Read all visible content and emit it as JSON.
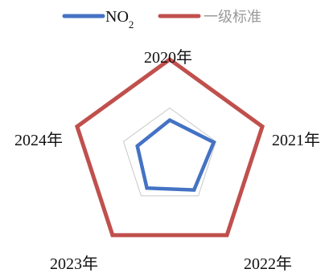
{
  "chart_data": {
    "type": "radar",
    "categories": [
      "2020年",
      "2021年",
      "2022年",
      "2023年",
      "2024年"
    ],
    "rmax": 40,
    "series": [
      {
        "name": "NO2",
        "label_main": "NO",
        "label_sub": "2",
        "color": "#4472c4",
        "values": [
          15,
          19,
          17,
          16,
          14
        ]
      },
      {
        "name": "一级标准",
        "label_main": "一级标准",
        "color": "#c0504d",
        "values": [
          40,
          40,
          40,
          40,
          40
        ]
      }
    ],
    "gridline_color": "#c8c8c8",
    "legend_position": "top"
  }
}
